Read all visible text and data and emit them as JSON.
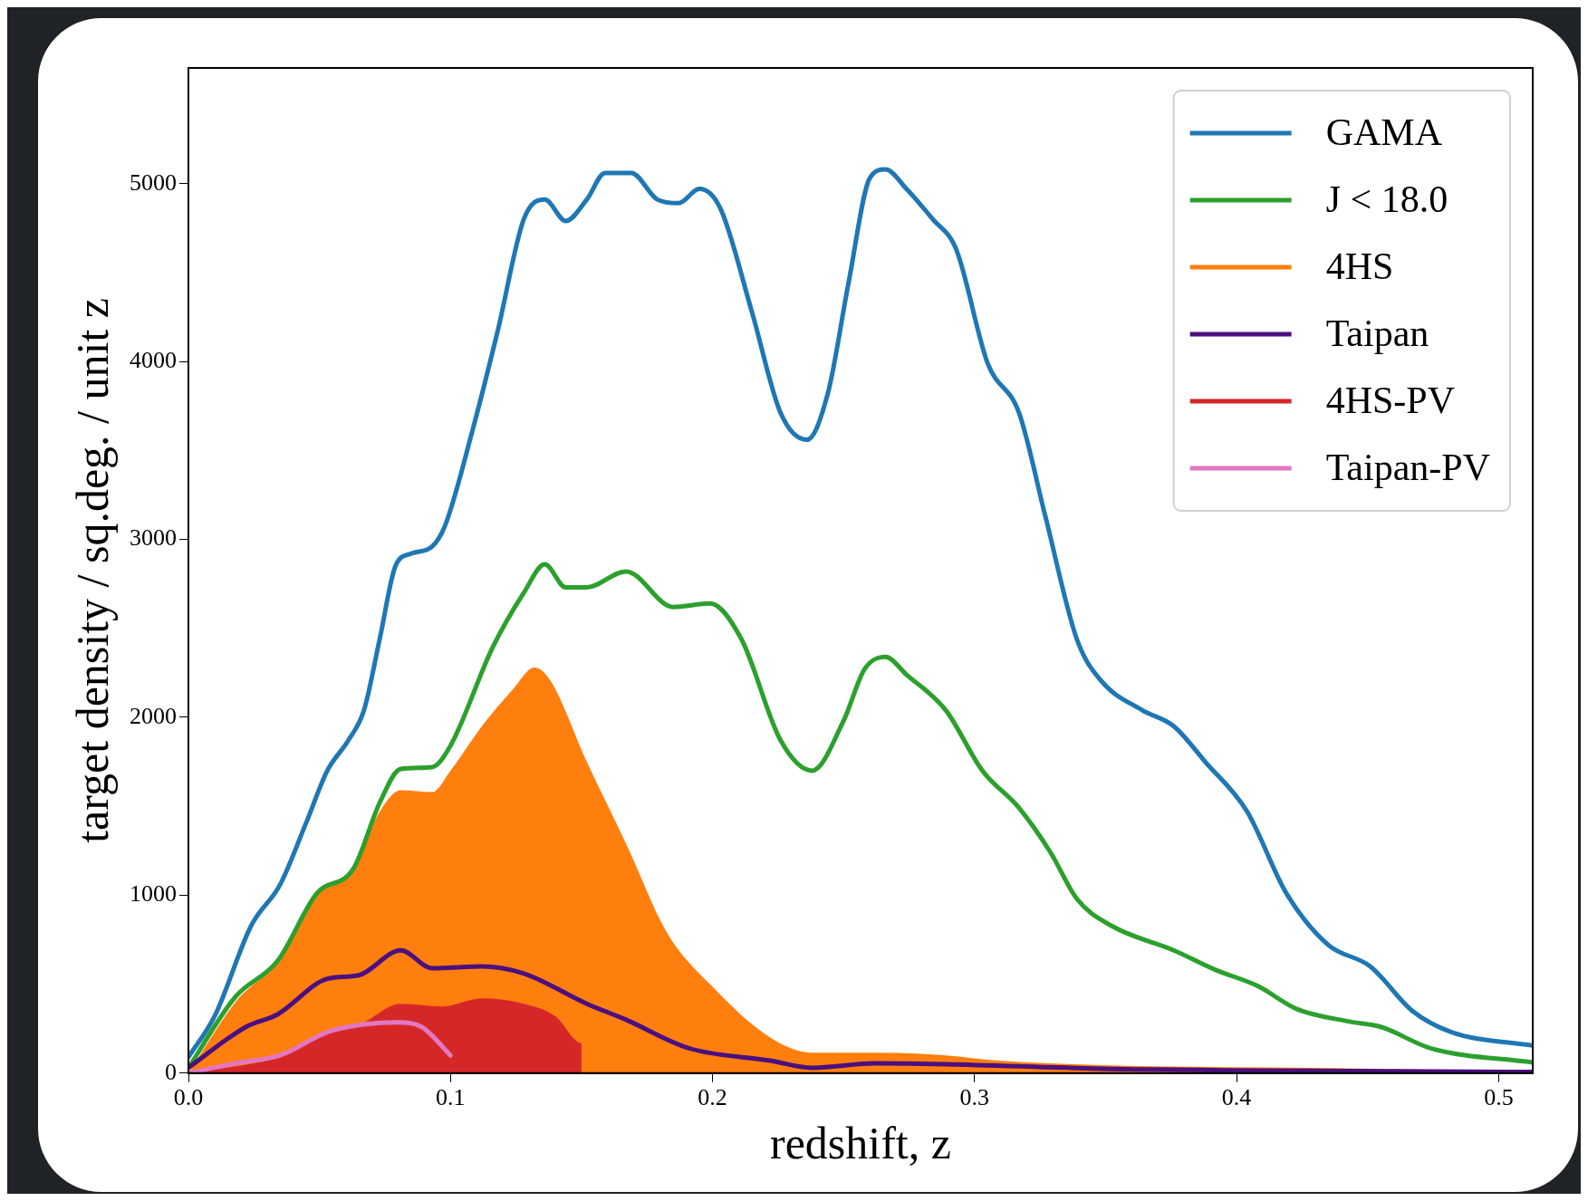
{
  "chart_data": {
    "type": "line",
    "xlabel": "redshift, z",
    "ylabel": "target density / sq.deg. / unit z",
    "xlim": [
      0,
      0.513
    ],
    "ylim": [
      0,
      5650
    ],
    "xticks": [
      {
        "value": 0,
        "label": "0.0"
      },
      {
        "value": 0.1,
        "label": "0.1"
      },
      {
        "value": 0.2,
        "label": "0.2"
      },
      {
        "value": 0.3,
        "label": "0.3"
      },
      {
        "value": 0.4,
        "label": "0.4"
      },
      {
        "value": 0.5,
        "label": "0.5"
      }
    ],
    "yticks": [
      0,
      1000,
      2000,
      3000,
      4000,
      5000
    ],
    "grid": false,
    "legend": "top right",
    "marker": "none",
    "series": [
      {
        "name": "GAMA",
        "color": "#1f77b4",
        "x": [
          0,
          0.01,
          0.024,
          0.035,
          0.045,
          0.053,
          0.061,
          0.067,
          0.073,
          0.079,
          0.085,
          0.093,
          0.098,
          0.108,
          0.118,
          0.128,
          0.136,
          0.144,
          0.152,
          0.159,
          0.169,
          0.179,
          0.187,
          0.195,
          0.203,
          0.215,
          0.226,
          0.236,
          0.244,
          0.252,
          0.26,
          0.266,
          0.274,
          0.284,
          0.293,
          0.305,
          0.317,
          0.327,
          0.339,
          0.348,
          0.364,
          0.376,
          0.388,
          0.404,
          0.419,
          0.435,
          0.451,
          0.467,
          0.482,
          0.513
        ],
        "values": [
          90,
          320,
          830,
          1060,
          1410,
          1700,
          1870,
          2040,
          2440,
          2850,
          2920,
          2960,
          3080,
          3590,
          4170,
          4800,
          4910,
          4790,
          4910,
          5060,
          5060,
          4910,
          4890,
          4970,
          4860,
          4280,
          3710,
          3560,
          3820,
          4450,
          5030,
          5080,
          4970,
          4800,
          4630,
          3990,
          3710,
          3130,
          2440,
          2210,
          2040,
          1950,
          1750,
          1470,
          1010,
          720,
          600,
          350,
          230,
          155
        ]
      },
      {
        "name": "J < 18.0",
        "color": "#2ca02c",
        "x": [
          0,
          0.018,
          0.034,
          0.049,
          0.063,
          0.073,
          0.081,
          0.093,
          0.1,
          0.116,
          0.128,
          0.136,
          0.144,
          0.152,
          0.167,
          0.185,
          0.199,
          0.211,
          0.226,
          0.238,
          0.25,
          0.258,
          0.266,
          0.274,
          0.289,
          0.303,
          0.317,
          0.329,
          0.339,
          0.352,
          0.376,
          0.392,
          0.408,
          0.423,
          0.443,
          0.455,
          0.474,
          0.513
        ],
        "values": [
          30,
          430,
          630,
          1010,
          1150,
          1520,
          1710,
          1720,
          1840,
          2390,
          2700,
          2860,
          2730,
          2730,
          2820,
          2620,
          2640,
          2440,
          1870,
          1700,
          1980,
          2270,
          2340,
          2240,
          2040,
          1700,
          1490,
          1240,
          980,
          830,
          690,
          580,
          490,
          360,
          290,
          260,
          140,
          60
        ]
      },
      {
        "name": "4HS",
        "type": "area",
        "color": "#ff7f0e",
        "x": [
          0,
          0.018,
          0.034,
          0.049,
          0.063,
          0.073,
          0.081,
          0.093,
          0.1,
          0.112,
          0.124,
          0.132,
          0.138,
          0.152,
          0.167,
          0.183,
          0.199,
          0.222,
          0.238,
          0.262,
          0.289,
          0.309,
          0.348,
          0.427,
          0.513
        ],
        "values": [
          0,
          400,
          630,
          1010,
          1150,
          1470,
          1590,
          1580,
          1700,
          1950,
          2160,
          2280,
          2210,
          1750,
          1290,
          780,
          500,
          200,
          115,
          115,
          100,
          70,
          45,
          30,
          10
        ]
      },
      {
        "name": "Taipan",
        "color": "#4b0f7f",
        "x": [
          0,
          0.022,
          0.034,
          0.053,
          0.065,
          0.081,
          0.093,
          0.112,
          0.128,
          0.152,
          0.167,
          0.191,
          0.222,
          0.238,
          0.262,
          0.289,
          0.348,
          0.513
        ],
        "values": [
          30,
          260,
          330,
          530,
          550,
          690,
          590,
          600,
          560,
          390,
          300,
          140,
          70,
          30,
          55,
          50,
          25,
          6
        ]
      },
      {
        "name": "4HS-PV",
        "type": "area",
        "color": "#d62728",
        "x": [
          0,
          0.034,
          0.053,
          0.065,
          0.081,
          0.097,
          0.112,
          0.128,
          0.14,
          0.15,
          0.15
        ],
        "values": [
          0,
          90,
          230,
          270,
          390,
          375,
          420,
          390,
          320,
          170,
          0
        ]
      },
      {
        "name": "Taipan-PV",
        "color": "#e377c2",
        "x": [
          0,
          0.018,
          0.035,
          0.053,
          0.065,
          0.08,
          0.089,
          0.1
        ],
        "values": [
          0,
          55,
          100,
          230,
          270,
          285,
          260,
          100
        ]
      }
    ]
  }
}
